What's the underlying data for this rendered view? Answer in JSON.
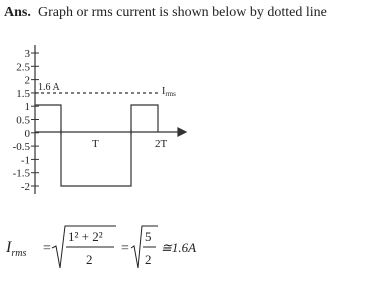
{
  "answer": {
    "label": "Ans.",
    "text": "Graph or rms current is shown below by dotted line"
  },
  "graph": {
    "yticks": [
      "3",
      "2.5",
      "2",
      "1.5",
      "1",
      "0.5",
      "0",
      "-0.5",
      "-1",
      "-1.5",
      "-2"
    ],
    "rms_value_label": "1.6 A",
    "rms_symbol": "I",
    "rms_subscript": "rms",
    "x_label_1": "T",
    "x_label_2": "2T"
  },
  "formula": {
    "lhs": "I",
    "lhs_subscript": "rms",
    "eq1": "=",
    "numerator": "1² + 2²",
    "denominator": "2",
    "eq2": "=",
    "numerator2": "5",
    "denominator2": "2",
    "result": "≅1.6A"
  }
}
